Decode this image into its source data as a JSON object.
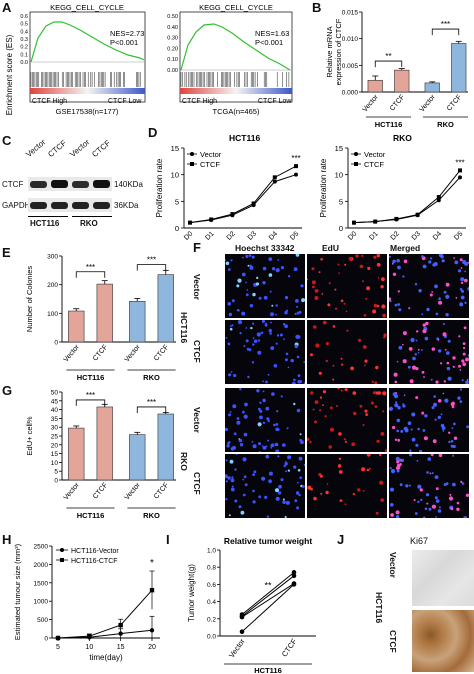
{
  "panels": {
    "A": {
      "label": "A",
      "left": {
        "title": "KEGG_CELL_CYCLE",
        "nes": "NES=2.73",
        "p": "P<0.001",
        "high": "CTCF High",
        "low": "CTCF Low",
        "dataset": "GSE17538(n=177)",
        "ylabel": "Enrichment score (ES)",
        "yticks": [
          "0.6",
          "0.5",
          "0.4",
          "0.3",
          "0.2",
          "0.1",
          "0.0"
        ]
      },
      "right": {
        "title": "KEGG_CELL_CYCLE",
        "nes": "NES=1.63",
        "p": "P<0.001",
        "high": "CTCF High",
        "low": "CTCF Low",
        "dataset": "TCGA(n=465)",
        "yticks": [
          "0.50",
          "0.40",
          "0.30",
          "0.20",
          "0.10",
          "0.00"
        ]
      }
    },
    "B": {
      "label": "B",
      "sig1": "**",
      "sig2": "***",
      "bars": [
        "Vector",
        "CTCF",
        "Vector",
        "CTCF"
      ],
      "groups": [
        "HCT116",
        "RKO"
      ],
      "ylabel": "Relative mRNA\nexpression of CTCF",
      "yticks": [
        "0.015",
        "0.010",
        "0.005",
        "0.000"
      ]
    },
    "C": {
      "label": "C",
      "lanes": [
        "Vector",
        "CTCF",
        "Vector",
        "CTCF"
      ],
      "rows": [
        "CTCF",
        "GAPDH"
      ],
      "sizes": [
        "140KDa",
        "36KDa"
      ],
      "groups": [
        "HCT116",
        "RKO"
      ]
    },
    "D": {
      "label": "D",
      "legend_vector": "Vector",
      "legend_ctcf": "CTCF",
      "ylabel": "Proliferation rate",
      "sig": "***"
    },
    "E": {
      "label": "E",
      "ylabel": "Number of Colonies",
      "sig": "***",
      "groups": [
        "HCT116",
        "RKO"
      ],
      "yticks": [
        "300",
        "200",
        "100",
        "0"
      ]
    },
    "F": {
      "label": "F",
      "cols": [
        "Hoechst 33342",
        "EdU",
        "Merged"
      ],
      "rows": [
        "Vector",
        "CTCF",
        "Vector",
        "CTCF"
      ],
      "groups": [
        "HCT116",
        "RKO"
      ]
    },
    "G": {
      "label": "G",
      "ylabel": "EdU+ cell%",
      "sig": "***",
      "groups": [
        "HCT116",
        "RKO"
      ],
      "yticks": [
        "50",
        "45",
        "40",
        "35",
        "30",
        "25",
        "20",
        "15",
        "10",
        "5",
        "0"
      ]
    },
    "H": {
      "label": "H",
      "ylabel": "Estimated tumour size (mm³)",
      "xlabel": "time(day)",
      "sig": "*",
      "legend_vector": "HCT116-Vector",
      "legend_ctcf": "HCT116-CTCF",
      "yticks": [
        "2500",
        "2000",
        "1500",
        "1000",
        "500",
        "0"
      ]
    },
    "I": {
      "label": "I",
      "title": "Relative tumor weight",
      "ylabel": "Tumor weight(g)",
      "sig": "**",
      "xticks": [
        "Vector",
        "CTCF"
      ],
      "group": "HCT116",
      "yticks": [
        "1.0",
        "0.8",
        "0.6",
        "0.4",
        "0.2",
        "0.0"
      ]
    },
    "J": {
      "label": "J",
      "title": "Ki67",
      "rows": [
        "Vector",
        "CTCF"
      ],
      "group": "HCT116"
    }
  },
  "chart_data": [
    {
      "id": "B",
      "type": "bar",
      "categories": [
        "HCT116 Vector",
        "HCT116 CTCF",
        "RKO Vector",
        "RKO CTCF"
      ],
      "values": [
        0.0022,
        0.0041,
        0.0017,
        0.0091
      ],
      "errors": [
        0.0008,
        0.0003,
        0.0002,
        0.0004
      ],
      "colors": [
        "#e3a49a",
        "#e3a49a",
        "#8fb6dc",
        "#8fb6dc"
      ],
      "ylim": [
        0,
        0.015
      ],
      "ylabel": "Relative mRNA expression of CTCF"
    },
    {
      "id": "D-HCT116",
      "type": "line",
      "title": "HCT116",
      "x": [
        "D0",
        "D1",
        "D2",
        "D3",
        "D4",
        "D5"
      ],
      "series": [
        {
          "name": "Vector",
          "values": [
            1.0,
            1.5,
            2.4,
            4.3,
            8.7,
            10.0
          ]
        },
        {
          "name": "CTCF",
          "values": [
            1.0,
            1.6,
            2.6,
            4.6,
            9.5,
            11.6
          ]
        }
      ],
      "ylim": [
        0,
        15
      ],
      "yticks": [
        0,
        5,
        10,
        15
      ],
      "ylabel": "Proliferation rate"
    },
    {
      "id": "D-RKO",
      "type": "line",
      "title": "RKO",
      "x": [
        "D0",
        "D1",
        "D2",
        "D3",
        "D4",
        "D5"
      ],
      "series": [
        {
          "name": "Vector",
          "values": [
            1.0,
            1.2,
            1.6,
            2.4,
            5.2,
            9.5
          ]
        },
        {
          "name": "CTCF",
          "values": [
            1.0,
            1.2,
            1.7,
            2.5,
            5.8,
            10.8
          ]
        }
      ],
      "ylim": [
        0,
        15
      ],
      "yticks": [
        0,
        5,
        10,
        15
      ],
      "ylabel": "Proliferation rate"
    },
    {
      "id": "E",
      "type": "bar",
      "categories": [
        "HCT116 Vector",
        "HCT116 CTCF",
        "RKO Vector",
        "RKO CTCF"
      ],
      "values": [
        108,
        202,
        142,
        235
      ],
      "errors": [
        8,
        12,
        10,
        15
      ],
      "colors": [
        "#e3a49a",
        "#e3a49a",
        "#8fb6dc",
        "#8fb6dc"
      ],
      "ylim": [
        0,
        300
      ],
      "ylabel": "Number of Colonies"
    },
    {
      "id": "G",
      "type": "bar",
      "categories": [
        "HCT116 Vector",
        "HCT116 CTCF",
        "RKO Vector",
        "RKO CTCF"
      ],
      "values": [
        29.5,
        41.5,
        25.8,
        37.5
      ],
      "errors": [
        1.2,
        1.5,
        1.3,
        0.8
      ],
      "colors": [
        "#e3a49a",
        "#e3a49a",
        "#8fb6dc",
        "#8fb6dc"
      ],
      "ylim": [
        0,
        50
      ],
      "ylabel": "EdU+ cell%"
    },
    {
      "id": "H",
      "type": "line",
      "x": [
        5,
        10,
        15,
        20
      ],
      "series": [
        {
          "name": "HCT116-Vector",
          "values": [
            0,
            20,
            120,
            210
          ],
          "errors": [
            10,
            40,
            130,
            380
          ]
        },
        {
          "name": "HCT116-CTCF",
          "values": [
            0,
            50,
            350,
            1300
          ],
          "errors": [
            10,
            60,
            160,
            520
          ]
        }
      ],
      "ylim": [
        0,
        2500
      ],
      "xlabel": "time(day)",
      "ylabel": "Estimated tumour size (mm3)"
    },
    {
      "id": "I",
      "type": "line",
      "x": [
        "Vector",
        "CTCF"
      ],
      "series": [
        {
          "name": "",
          "values": [
            0.23,
            0.7
          ]
        },
        {
          "name": "",
          "values": [
            0.25,
            0.74
          ]
        },
        {
          "name": "",
          "values": [
            0.05,
            0.6
          ]
        },
        {
          "name": "",
          "values": [
            0.22,
            0.61
          ]
        }
      ],
      "ylim": [
        0,
        1.0
      ],
      "ylabel": "Tumor weight(g)",
      "title": "Relative tumor weight"
    }
  ]
}
